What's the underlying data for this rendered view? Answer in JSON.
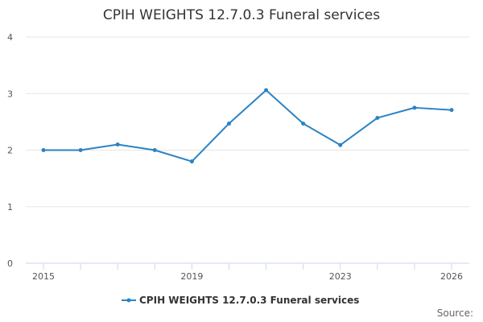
{
  "chart_data": {
    "type": "line",
    "title": "CPIH WEIGHTS 12.7.0.3 Funeral services",
    "xlabel": "",
    "ylabel": "",
    "x": [
      2015,
      2016,
      2017,
      2018,
      2019,
      2020,
      2021,
      2022,
      2023,
      2024,
      2025,
      2026
    ],
    "x_tick_labels": [
      "2015",
      "2019",
      "2023",
      "2026"
    ],
    "xlim": [
      2015,
      2026
    ],
    "y_ticks": [
      0,
      1,
      2,
      3,
      4
    ],
    "ylim": [
      0,
      4
    ],
    "series": [
      {
        "name": "CPIH WEIGHTS 12.7.0.3 Funeral services",
        "color": "#2b83c4",
        "values": [
          2.0,
          2.0,
          2.1,
          2.0,
          1.8,
          2.47,
          3.06,
          2.47,
          2.09,
          2.57,
          2.75,
          2.71
        ]
      }
    ],
    "grid": "horizontal",
    "legend_position": "bottom",
    "credit": "Source:"
  }
}
